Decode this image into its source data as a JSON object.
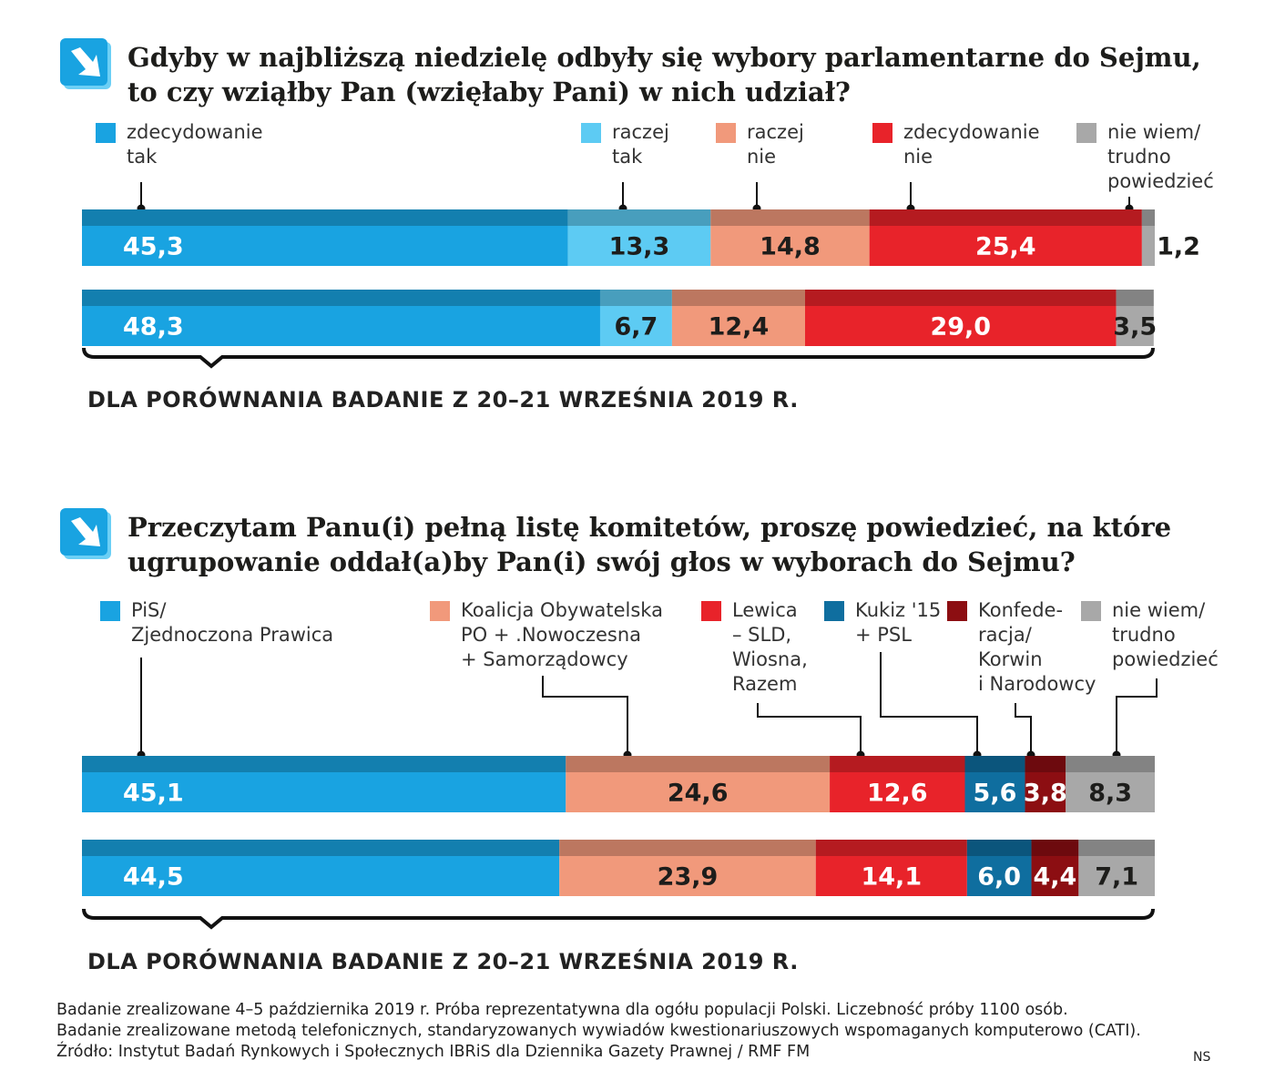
{
  "chart_data": [
    {
      "type": "stacked-bar",
      "title": "Gdyby w najbliższą niedzielę odbyły się wybory parlamentarne do Sejmu,\nto czy wziąłby Pan (wzięłaby Pani) w nich udział?",
      "categories": [
        null,
        "DLA PORÓWNANIA BADANIE Z 20–21 WRZEŚNIA 2019 R."
      ],
      "xlim": [
        0,
        100
      ],
      "series": [
        {
          "name": "zdecydowanie\ntak",
          "color": "#19a3e1",
          "values": [
            45.3,
            48.3
          ],
          "value_labels": [
            "45,3",
            "48,3"
          ]
        },
        {
          "name": "raczej\ntak",
          "color": "#5dcbf3",
          "values": [
            13.3,
            6.7
          ],
          "value_labels": [
            "13,3",
            "6,7"
          ]
        },
        {
          "name": "raczej\nnie",
          "color": "#f1997b",
          "values": [
            14.8,
            12.4
          ],
          "value_labels": [
            "14,8",
            "12,4"
          ]
        },
        {
          "name": "zdecydowanie\nnie",
          "color": "#e8232a",
          "values": [
            25.4,
            29.0
          ],
          "value_labels": [
            "25,4",
            "29,0"
          ]
        },
        {
          "name": "nie wiem/\ntrudno\npowiedzieć",
          "color": "#a8a8a8",
          "values": [
            1.2,
            3.5
          ],
          "value_labels": [
            "1,2",
            "3,5"
          ]
        }
      ]
    },
    {
      "type": "stacked-bar",
      "title": "Przeczytam Panu(i) pełną listę komitetów, proszę powiedzieć, na które\nugrupowanie oddał(a)by Pan(i) swój głos w wyborach do Sejmu?",
      "categories": [
        null,
        "DLA PORÓWNANIA BADANIE Z 20–21 WRZEŚNIA 2019 R."
      ],
      "xlim": [
        0,
        100
      ],
      "series": [
        {
          "name": "PiS/\nZjednoczona Prawica",
          "color": "#19a3e1",
          "values": [
            45.1,
            44.5
          ],
          "value_labels": [
            "45,1",
            "44,5"
          ]
        },
        {
          "name": "Koalicja Obywatelska\nPO + .Nowoczesna\n+ Samorządowcy",
          "color": "#f1997b",
          "values": [
            24.6,
            23.9
          ],
          "value_labels": [
            "24,6",
            "23,9"
          ]
        },
        {
          "name": "Lewica\n– SLD,\nWiosna,\nRazem",
          "color": "#e8232a",
          "values": [
            12.6,
            14.1
          ],
          "value_labels": [
            "12,6",
            "14,1"
          ]
        },
        {
          "name": "Kukiz '15\n+ PSL",
          "color": "#0f6e9f",
          "values": [
            5.6,
            6.0
          ],
          "value_labels": [
            "5,6",
            "6,0"
          ]
        },
        {
          "name": "Konfede-\nracja/\nKorwin\ni Narodowcy",
          "color": "#8c0e12",
          "values": [
            3.8,
            4.4
          ],
          "value_labels": [
            "3,8",
            "4,4"
          ]
        },
        {
          "name": "nie wiem/\ntrudno\npowiedzieć",
          "color": "#a8a8a8",
          "values": [
            8.3,
            7.1
          ],
          "value_labels": [
            "8,3",
            "7,1"
          ]
        }
      ]
    }
  ],
  "footer": {
    "notes": [
      "Badanie zrealizowane 4–5 października 2019 r. Próba reprezentatywna dla ogółu populacji Polski. Liczebność próby 1100 osób.",
      "Badanie zrealizowane metodą telefonicznych, standaryzowanych wywiadów kwestionariuszowych wspomaganych komputerowo (CATI).",
      "Źródło: Instytut Badań Rynkowych i Społecznych IBRiS dla Dziennika Gazety Prawnej / RMF FM"
    ],
    "credit": "NS"
  }
}
